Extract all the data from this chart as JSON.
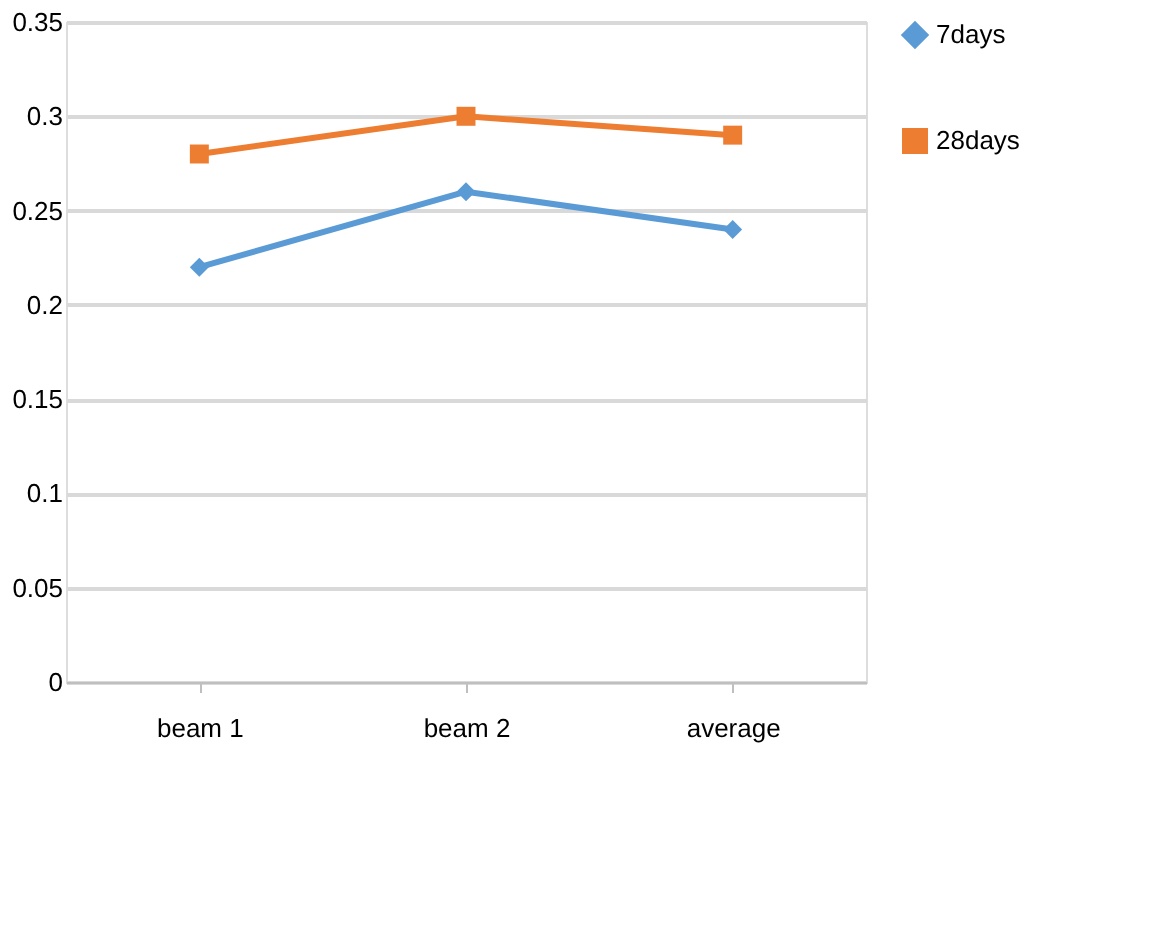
{
  "chart_data": {
    "type": "line",
    "categories": [
      "beam 1",
      "beam 2",
      "average"
    ],
    "series": [
      {
        "name": "7days",
        "color": "#5b9bd5",
        "marker": "diamond",
        "values": [
          0.22,
          0.26,
          0.24
        ]
      },
      {
        "name": "28days",
        "color": "#ed7d31",
        "marker": "square",
        "values": [
          0.28,
          0.3,
          0.29
        ]
      }
    ],
    "ylim": [
      0,
      0.35
    ],
    "yticks": [
      0,
      0.05,
      0.1,
      0.15,
      0.2,
      0.25,
      0.3,
      0.35
    ],
    "grid": "y",
    "legend": "right"
  }
}
